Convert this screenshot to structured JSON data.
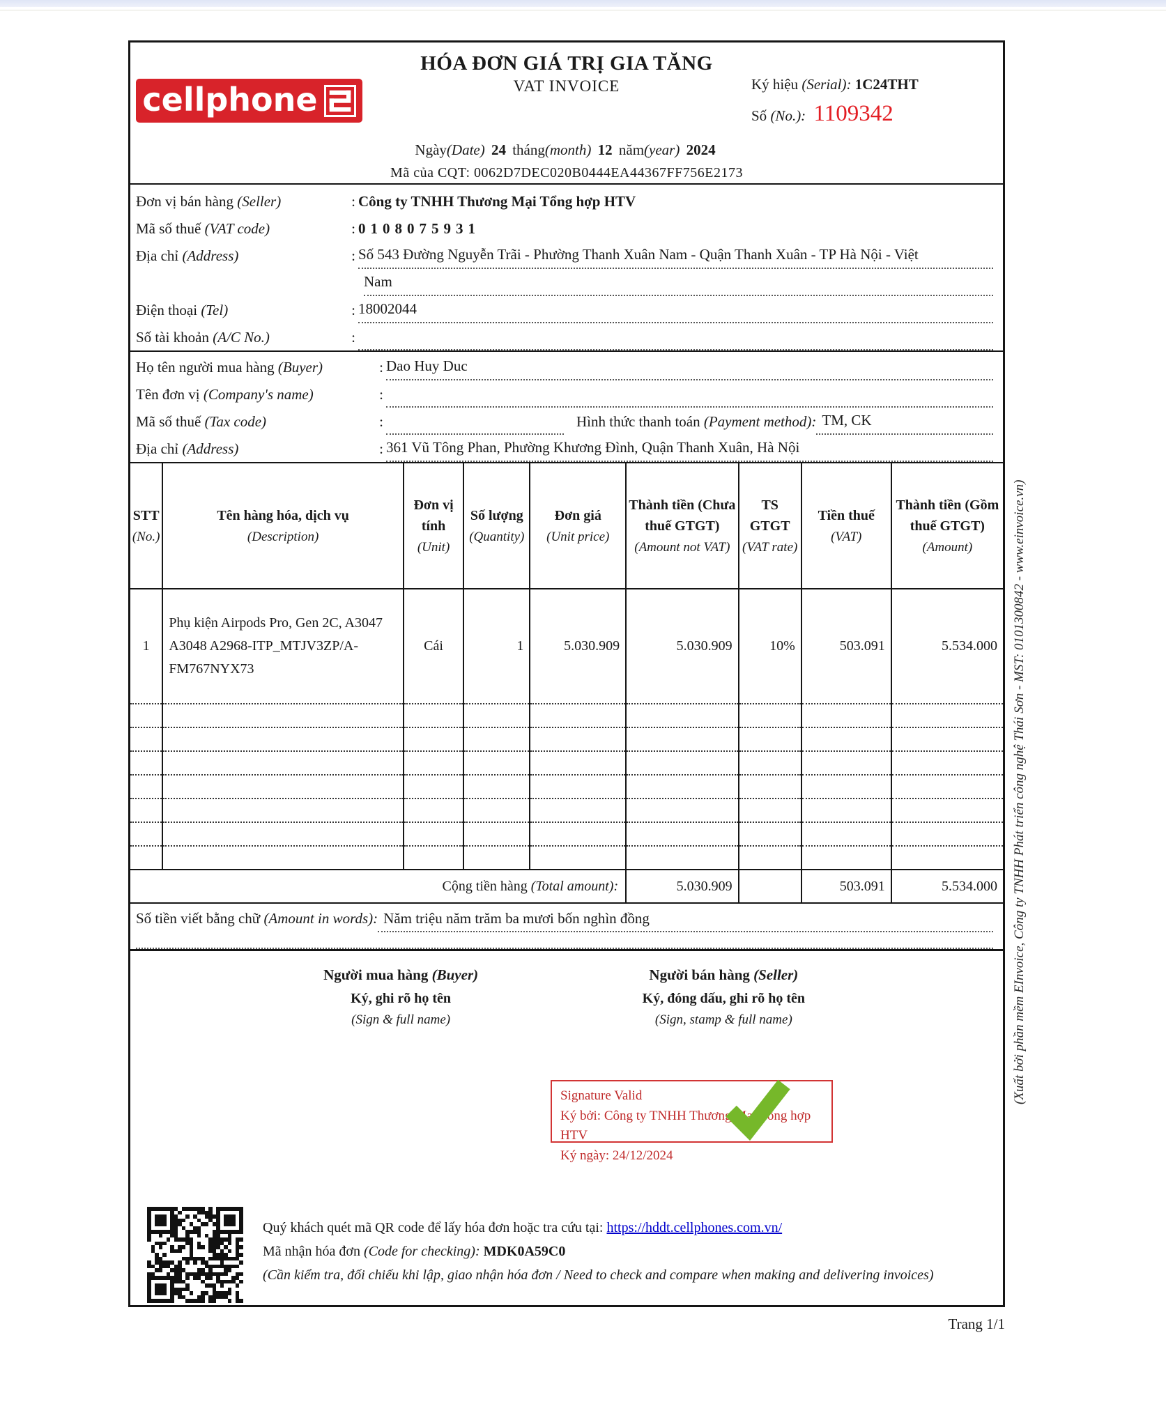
{
  "punct": {
    "colon": ":"
  },
  "colors": {
    "brand_red": "#d8232a",
    "number_red": "#e31e24",
    "sig_red": "#c02b2b",
    "check_green": "#76b82a",
    "link_blue": "#0000cc"
  },
  "header": {
    "logo_text": "cellphone",
    "logo_s": "S",
    "title_vi": "HÓA ĐƠN GIÁ TRỊ GIA TĂNG",
    "title_en": "VAT INVOICE",
    "serial_label": "Ký hiệu",
    "serial_label_en": "(Serial):",
    "serial_value": "1C24THT",
    "no_label": "Số",
    "no_label_en": "(No.):",
    "no_value": "1109342",
    "date_label": "Ngày",
    "date_label_en": "(Date)",
    "date_day": "24",
    "month_label": "tháng",
    "month_label_en": "(month)",
    "date_month": "12",
    "year_label": "năm",
    "year_label_en": "(year)",
    "date_year": "2024",
    "cqt_label": "Mã của CQT:",
    "cqt_value": "0062D7DEC020B0444EA44367FF756E2173"
  },
  "seller": {
    "name_label": "Đơn vị bán hàng",
    "name_label_en": "(Seller)",
    "name": "Công ty TNHH Thương Mại Tổng hợp HTV",
    "vat_label": "Mã số thuế",
    "vat_label_en": "(VAT code)",
    "vat_code": "0108075931",
    "addr_label": "Địa chỉ",
    "addr_label_en": "(Address)",
    "addr_line1": "Số 543 Đường Nguyễn Trãi - Phường Thanh Xuân Nam - Quận Thanh Xuân - TP Hà Nội - Việt",
    "addr_line2": "Nam",
    "tel_label": "Điện thoại",
    "tel_label_en": "(Tel)",
    "tel": "18002044",
    "account_label": "Số tài khoản",
    "account_label_en": "(A/C No.)",
    "account": ""
  },
  "buyer": {
    "name_label": "Họ tên người mua hàng",
    "name_label_en": "(Buyer)",
    "name": "Dao Huy Duc",
    "company_label": "Tên đơn vị",
    "company_label_en": "(Company's name)",
    "company": "",
    "tax_label": "Mã số thuế",
    "tax_label_en": "(Tax code)",
    "tax_code": "",
    "payment_label": "Hình thức thanh toán",
    "payment_label_en": "(Payment method):",
    "payment": "TM, CK",
    "addr_label": "Địa chỉ",
    "addr_label_en": "(Address)",
    "address": "361 Vũ Tông Phan, Phường Khương Đình, Quận Thanh Xuân, Hà Nội"
  },
  "table": {
    "headers": [
      {
        "vi": "STT",
        "en": "(No.)"
      },
      {
        "vi": "Tên hàng hóa, dịch vụ",
        "en": "(Description)"
      },
      {
        "vi": "Đơn vị tính",
        "en": "(Unit)"
      },
      {
        "vi": "Số lượng",
        "en": "(Quantity)"
      },
      {
        "vi": "Đơn giá",
        "en": "(Unit price)"
      },
      {
        "vi": "Thành tiền (Chưa thuế GTGT)",
        "en": "(Amount not VAT)"
      },
      {
        "vi": "TS GTGT",
        "en": "(VAT rate)"
      },
      {
        "vi": "Tiền thuế",
        "en": "(VAT)"
      },
      {
        "vi": "Thành tiền (Gồm thuế GTGT)",
        "en": "(Amount)"
      }
    ],
    "items": [
      {
        "no": "1",
        "description": "Phụ kiện Airpods Pro, Gen 2C, A3047 A3048 A2968-ITP_MTJV3ZP/A-FM767NYX73",
        "unit": "Cái",
        "qty": "1",
        "unit_price": "5.030.909",
        "amount_not_vat": "5.030.909",
        "vat_rate": "10%",
        "vat": "503.091",
        "amount": "5.534.000"
      }
    ],
    "total_label": "Cộng tiền hàng",
    "total_label_en": "(Total amount):",
    "total_amount_not_vat": "5.030.909",
    "total_vat": "503.091",
    "total_amount": "5.534.000",
    "words_label": "Số tiền viết bằng chữ",
    "words_label_en": "(Amount in words):",
    "amount_in_words": "Năm triệu năm trăm ba mươi bốn nghìn đồng"
  },
  "signatures": {
    "buyer_title": "Người mua hàng",
    "buyer_title_en": "(Buyer)",
    "buyer_line2": "Ký, ghi rõ họ tên",
    "buyer_line3": "(Sign & full name)",
    "seller_title": "Người bán hàng",
    "seller_title_en": "(Seller)",
    "seller_line2": "Ký, đóng dấu, ghi rõ họ tên",
    "seller_line3": "(Sign, stamp & full name)",
    "sig_valid": "Signature Valid",
    "sig_by": "Ký bởi: Công ty TNHH Thương Mại Tổng hợp HTV",
    "sig_date": "Ký ngày: 24/12/2024"
  },
  "footer": {
    "qr_note": "Quý khách quét mã QR code để lấy hóa đơn hoặc tra cứu tại:",
    "qr_link": "https://hddt.cellphones.com.vn/",
    "code_label": "Mã nhận hóa đơn",
    "code_label_en": "(Code for checking):",
    "code_value": "MDK0A59C0",
    "check_note": "(Cần kiểm tra, đối chiếu khi lập, giao nhận hóa đơn / Need to check and compare when making and delivering invoices)"
  },
  "sidebar_note": "(Xuất bởi phần mềm EInvoice, Công ty TNHH Phát triển công nghệ Thái Sơn - MST: 0101300842 - www.einvoice.vn)",
  "page": {
    "page_number_label": "Trang 1/1"
  }
}
